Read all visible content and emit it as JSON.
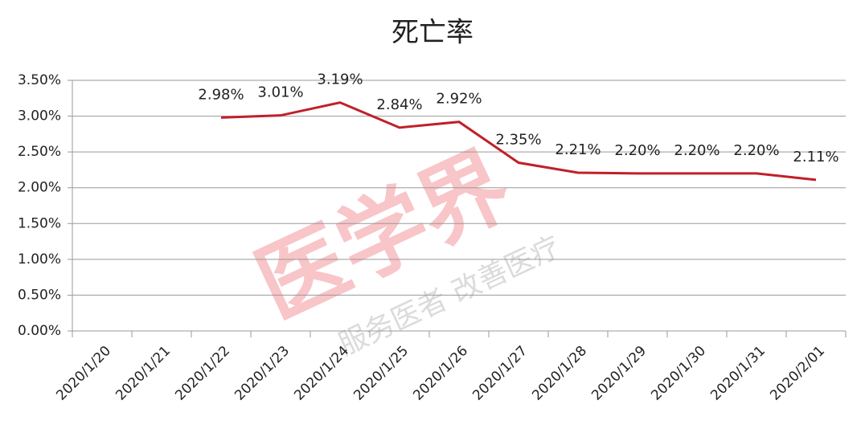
{
  "chart_data": {
    "type": "line",
    "title": "死亡率",
    "watermark": "医学界",
    "watermark_subtitle": "服务医者 改善医疗",
    "categories": [
      "2020/1/20",
      "2020/1/21",
      "2020/1/22",
      "2020/1/23",
      "2020/1/24",
      "2020/1/25",
      "2020/1/26",
      "2020/1/27",
      "2020/1/28",
      "2020/1/29",
      "2020/1/30",
      "2020/1/31",
      "2020/2/01"
    ],
    "series": [
      {
        "name": "死亡率",
        "color": "#c0202a",
        "values": [
          null,
          null,
          2.98,
          3.01,
          3.19,
          2.84,
          2.92,
          2.35,
          2.21,
          2.2,
          2.2,
          2.2,
          2.11
        ],
        "value_labels": [
          null,
          null,
          "2.98%",
          "3.01%",
          "3.19%",
          "2.84%",
          "2.92%",
          "2.35%",
          "2.21%",
          "2.20%",
          "2.20%",
          "2.20%",
          "2.11%"
        ]
      }
    ],
    "ylim": [
      0,
      3.5
    ],
    "yticks": [
      {
        "value": 0,
        "label": "0.00%"
      },
      {
        "value": 0.5,
        "label": "0.50%"
      },
      {
        "value": 1,
        "label": "1.00%"
      },
      {
        "value": 1.5,
        "label": "1.50%"
      },
      {
        "value": 2,
        "label": "2.00%"
      },
      {
        "value": 2.5,
        "label": "2.50%"
      },
      {
        "value": 3,
        "label": "3.00%"
      },
      {
        "value": 3.5,
        "label": "3.50%"
      }
    ],
    "grid": true
  }
}
